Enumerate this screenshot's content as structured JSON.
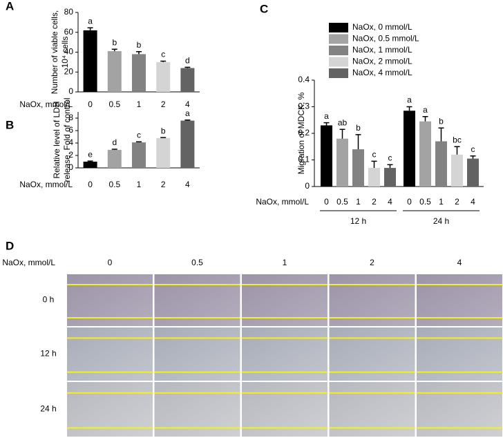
{
  "chart_data": [
    {
      "type": "bar",
      "panel": "A",
      "ylabel": [
        "Number of viable cells,",
        "10⁴ cells"
      ],
      "xlabel": "NaOx, mmol/L",
      "categories": [
        "0",
        "0.5",
        "1",
        "2",
        "4"
      ],
      "values": [
        62,
        41,
        38,
        30,
        24
      ],
      "errors": [
        2.5,
        2,
        2.5,
        1,
        0.8
      ],
      "letters": [
        "a",
        "b",
        "b",
        "c",
        "d"
      ],
      "colors": [
        "#000000",
        "#a3a3a3",
        "#828282",
        "#d4d4d4",
        "#636363"
      ],
      "ylim": [
        0,
        80
      ],
      "yticks": [
        0,
        20,
        40,
        60,
        80
      ]
    },
    {
      "type": "bar",
      "panel": "B",
      "ylabel": [
        "Relative level of LDH",
        "release, Fold of control"
      ],
      "xlabel": "NaOx, mmol/L",
      "categories": [
        "0",
        "0.5",
        "1",
        "2",
        "4"
      ],
      "values": [
        1.0,
        2.9,
        4.1,
        4.8,
        7.6
      ],
      "errors": [
        0.1,
        0.1,
        0.1,
        0.08,
        0.1
      ],
      "letters": [
        "e",
        "d",
        "c",
        "b",
        "a"
      ],
      "colors": [
        "#000000",
        "#a3a3a3",
        "#828282",
        "#d4d4d4",
        "#636363"
      ],
      "ylim": [
        0,
        9
      ],
      "yticks": [
        0,
        2,
        4,
        6,
        8
      ]
    },
    {
      "type": "bar",
      "panel": "C",
      "ylabel": [
        "Migration of MDCK, %"
      ],
      "xlabel": "NaOx, mmol/L",
      "categories": [
        "12 h",
        "24 h"
      ],
      "bar_labels": [
        "0",
        "0.5",
        "1",
        "2",
        "4"
      ],
      "series": [
        {
          "name": "NaOx, 0 mmol/L",
          "color": "#000000",
          "values": [
            0.23,
            0.285
          ],
          "errors": [
            0.01,
            0.015
          ],
          "letters": [
            "a",
            "a"
          ]
        },
        {
          "name": "NaOx, 0.5 mmol/L",
          "color": "#a3a3a3",
          "values": [
            0.18,
            0.245
          ],
          "errors": [
            0.035,
            0.018
          ],
          "letters": [
            "ab",
            "a"
          ]
        },
        {
          "name": "NaOx, 1 mmol/L",
          "color": "#828282",
          "values": [
            0.14,
            0.17
          ],
          "errors": [
            0.055,
            0.05
          ],
          "letters": [
            "b",
            "b"
          ]
        },
        {
          "name": "NaOx, 2 mmol/L",
          "color": "#d4d4d4",
          "values": [
            0.07,
            0.12
          ],
          "errors": [
            0.025,
            0.03
          ],
          "letters": [
            "c",
            "bc"
          ]
        },
        {
          "name": "NaOx, 4 mmol/L",
          "color": "#636363",
          "values": [
            0.07,
            0.105
          ],
          "errors": [
            0.012,
            0.01
          ],
          "letters": [
            "c",
            "c"
          ]
        }
      ],
      "ylim": [
        0,
        0.4
      ],
      "yticks": [
        0,
        0.1,
        0.2,
        0.3,
        0.4
      ]
    }
  ],
  "panel_d": {
    "panel": "D",
    "header": "NaOx, mmol/L",
    "columns": [
      "0",
      "0.5",
      "1",
      "2",
      "4"
    ],
    "rows": [
      "0 h",
      "12 h",
      "24 h"
    ]
  }
}
